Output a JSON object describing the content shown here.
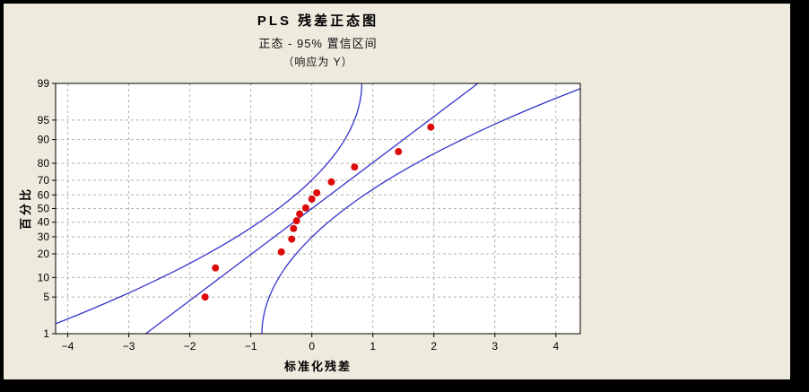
{
  "chart_data": {
    "type": "scatter",
    "subtype": "normal-probability-plot",
    "title": "PLS 残差正态图",
    "subtitle": "正态 - 95% 置信区间",
    "note": "（响应为 Y）",
    "xlabel": "标准化残差",
    "ylabel": "百分比",
    "xlim": [
      -4.2,
      4.4
    ],
    "x_ticks": [
      -4,
      -3,
      -2,
      -1,
      0,
      1,
      2,
      3,
      4
    ],
    "percent_ticks": [
      1,
      5,
      10,
      20,
      30,
      40,
      50,
      60,
      70,
      80,
      90,
      95,
      99
    ],
    "ylim_percent": [
      1,
      99
    ],
    "points": [
      {
        "x": -1.75,
        "percent": 5.0
      },
      {
        "x": -1.58,
        "percent": 13.5
      },
      {
        "x": -0.5,
        "percent": 21.0
      },
      {
        "x": -0.33,
        "percent": 28.5
      },
      {
        "x": -0.3,
        "percent": 35.5
      },
      {
        "x": -0.25,
        "percent": 41.0
      },
      {
        "x": -0.2,
        "percent": 46.0
      },
      {
        "x": -0.1,
        "percent": 50.5
      },
      {
        "x": 0.0,
        "percent": 57.0
      },
      {
        "x": 0.08,
        "percent": 61.5
      },
      {
        "x": 0.32,
        "percent": 69.0
      },
      {
        "x": 0.7,
        "percent": 78.0
      },
      {
        "x": 1.42,
        "percent": 85.5
      },
      {
        "x": 1.95,
        "percent": 93.5
      }
    ],
    "fit_line": {
      "mean": 0,
      "stdev": 1.17
    },
    "confidence_band": {
      "level_percent": 95,
      "half_width_center": 0.55,
      "half_width_quad": 0.25
    },
    "grid": true,
    "legend": false,
    "colors": {
      "point": "#dd0a0a",
      "line": "#3333cc",
      "grid": "#b5b2a6",
      "plot_bg": "#ffffff",
      "canvas_bg": "#eeeade",
      "page_bg": "#000000",
      "text": "#000000"
    }
  }
}
